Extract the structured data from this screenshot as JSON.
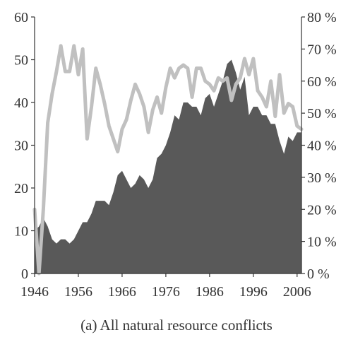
{
  "caption": "(a) All natural resource conflicts",
  "colors": {
    "area": "#595959",
    "line": "#c0c0c0",
    "axis": "#333333"
  },
  "chart_data": {
    "type": "area",
    "title": "",
    "xlabel": "",
    "ylabel": "",
    "xlim": [
      1946,
      2007
    ],
    "ylim": [
      0,
      60
    ],
    "y2lim": [
      0,
      80
    ],
    "x_ticks": [
      "1946",
      "1956",
      "1966",
      "1976",
      "1986",
      "1996",
      "2006"
    ],
    "y_ticks": [
      "0",
      "10",
      "20",
      "30",
      "40",
      "50",
      "60"
    ],
    "y2_ticks": [
      "0 %",
      "10 %",
      "20 %",
      "30 %",
      "40 %",
      "50 %",
      "60 %",
      "70 %",
      "80 %"
    ],
    "grid": false,
    "legend": "none",
    "x": [
      1946,
      1947,
      1948,
      1949,
      1950,
      1951,
      1952,
      1953,
      1954,
      1955,
      1956,
      1957,
      1958,
      1959,
      1960,
      1961,
      1962,
      1963,
      1964,
      1965,
      1966,
      1967,
      1968,
      1969,
      1970,
      1971,
      1972,
      1973,
      1974,
      1975,
      1976,
      1977,
      1978,
      1979,
      1980,
      1981,
      1982,
      1983,
      1984,
      1985,
      1986,
      1987,
      1988,
      1989,
      1990,
      1991,
      1992,
      1993,
      1994,
      1995,
      1996,
      1997,
      1998,
      1999,
      2000,
      2001,
      2002,
      2003,
      2004,
      2005,
      2006,
      2007
    ],
    "series": [
      {
        "type": "area",
        "axis": "left",
        "values": [
          10,
          11,
          13,
          11,
          8,
          7,
          8,
          8,
          7,
          8,
          10,
          12,
          12,
          14,
          17,
          17,
          17,
          16,
          19,
          23,
          24,
          22,
          20,
          21,
          23,
          22,
          20,
          22,
          27,
          28,
          30,
          33,
          37,
          36,
          40,
          40,
          39,
          39,
          37,
          41,
          42,
          39,
          42,
          45,
          49,
          50,
          47,
          43,
          46,
          37,
          39,
          39,
          37,
          37,
          35,
          35,
          31,
          28,
          32,
          31,
          33,
          33
        ]
      },
      {
        "type": "line",
        "axis": "right",
        "values": [
          20,
          0,
          20,
          47,
          56,
          63,
          71,
          63,
          63,
          71,
          62,
          70,
          42,
          52,
          64,
          59,
          53,
          46,
          42,
          38,
          45,
          48,
          54,
          59,
          56,
          52,
          44,
          51,
          55,
          50,
          58,
          64,
          61,
          64,
          65,
          64,
          55,
          64,
          64,
          60,
          59,
          57,
          61,
          60,
          61,
          54,
          59,
          61,
          67,
          62,
          67,
          57,
          55,
          52,
          60,
          49,
          62,
          50,
          53,
          52,
          46,
          45
        ]
      }
    ]
  }
}
